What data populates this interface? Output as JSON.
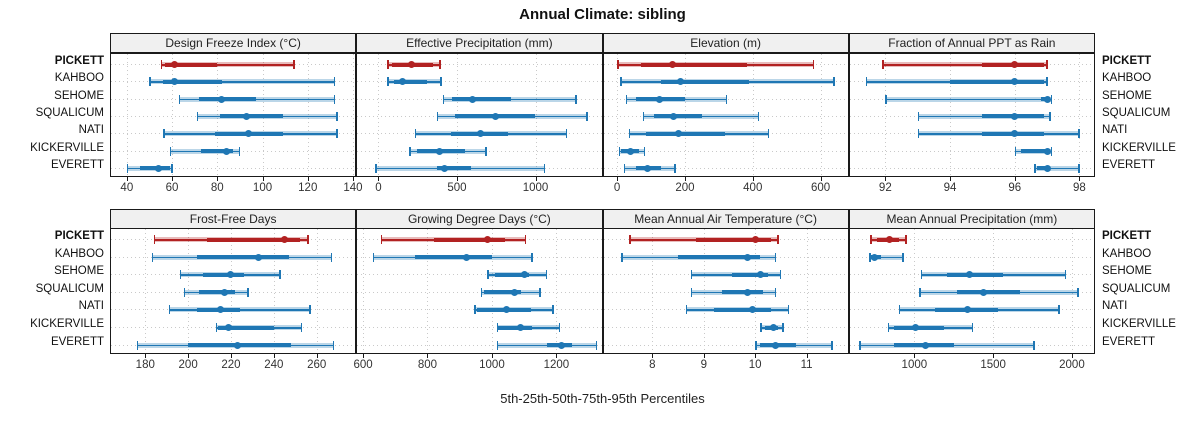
{
  "title": "Annual Climate: sibling",
  "caption": "5th-25th-50th-75th-95th Percentiles",
  "percentile_labels": [
    "5th",
    "25th",
    "50th",
    "75th",
    "95th"
  ],
  "stations": [
    "PICKETT",
    "KAHBOO",
    "SEHOME",
    "SQUALICUM",
    "NATI",
    "KICKERVILLE",
    "EVERETT"
  ],
  "highlight_station": "PICKETT",
  "colors": {
    "highlight": "#B22222",
    "highlight_band": "rgba(178,34,34,0.30)",
    "normal": "#1F77B4",
    "normal_band": "rgba(31,119,180,0.30)",
    "panel_border": "#1a1a1a",
    "header_bg": "#f0f0f0",
    "gridline": "#c9c9c9"
  },
  "chart_data": [
    {
      "type": "interval",
      "title": "Design Freeze Index (°C)",
      "ticks": [
        40,
        60,
        80,
        100,
        120,
        140
      ],
      "domain": [
        33,
        141
      ],
      "series": [
        {
          "name": "PICKETT",
          "percentiles": [
            55,
            57,
            61,
            80,
            114
          ]
        },
        {
          "name": "KAHBOO",
          "percentiles": [
            50,
            56,
            61,
            82,
            132
          ]
        },
        {
          "name": "SEHOME",
          "percentiles": [
            63,
            72,
            82,
            97,
            132
          ]
        },
        {
          "name": "SQUALICUM",
          "percentiles": [
            71,
            81,
            93,
            109,
            133
          ]
        },
        {
          "name": "NATI",
          "percentiles": [
            56,
            79,
            94,
            109,
            133
          ]
        },
        {
          "name": "KICKERVILLE",
          "percentiles": [
            59,
            73,
            84,
            87,
            90
          ]
        },
        {
          "name": "EVERETT",
          "percentiles": [
            40,
            46,
            54,
            59,
            60
          ]
        }
      ]
    },
    {
      "type": "interval",
      "title": "Effective Precipitation (mm)",
      "ticks": [
        0,
        500,
        1000
      ],
      "domain": [
        -135,
        1420
      ],
      "series": [
        {
          "name": "PICKETT",
          "percentiles": [
            55,
            85,
            210,
            350,
            395
          ]
        },
        {
          "name": "KAHBOO",
          "percentiles": [
            55,
            100,
            150,
            310,
            400
          ]
        },
        {
          "name": "SEHOME",
          "percentiles": [
            410,
            470,
            600,
            845,
            1260
          ]
        },
        {
          "name": "SQUALICUM",
          "percentiles": [
            370,
            490,
            745,
            995,
            1330
          ]
        },
        {
          "name": "NATI",
          "percentiles": [
            230,
            460,
            650,
            825,
            1200
          ]
        },
        {
          "name": "KICKERVILLE",
          "percentiles": [
            195,
            245,
            390,
            550,
            685
          ]
        },
        {
          "name": "EVERETT",
          "percentiles": [
            -20,
            375,
            420,
            590,
            1060
          ]
        }
      ]
    },
    {
      "type": "interval",
      "title": "Elevation (m)",
      "ticks": [
        0,
        200,
        400,
        600
      ],
      "domain": [
        -40,
        680
      ],
      "series": [
        {
          "name": "PICKETT",
          "percentiles": [
            0,
            70,
            162,
            383,
            580
          ]
        },
        {
          "name": "KAHBOO",
          "percentiles": [
            10,
            130,
            188,
            390,
            640
          ]
        },
        {
          "name": "SEHOME",
          "percentiles": [
            25,
            55,
            125,
            200,
            323
          ]
        },
        {
          "name": "SQUALICUM",
          "percentiles": [
            76,
            110,
            165,
            250,
            417
          ]
        },
        {
          "name": "NATI",
          "percentiles": [
            35,
            85,
            182,
            318,
            447
          ]
        },
        {
          "name": "KICKERVILLE",
          "percentiles": [
            5,
            12,
            41,
            66,
            81
          ]
        },
        {
          "name": "EVERETT",
          "percentiles": [
            20,
            56,
            89,
            130,
            172
          ]
        }
      ]
    },
    {
      "type": "interval",
      "title": "Fraction of Annual PPT as Rain",
      "ticks": [
        92,
        94,
        96,
        98
      ],
      "domain": [
        90.9,
        98.45
      ],
      "series": [
        {
          "name": "PICKETT",
          "percentiles": [
            91.9,
            95.0,
            96.0,
            96.9,
            97.0
          ]
        },
        {
          "name": "KAHBOO",
          "percentiles": [
            91.4,
            94.0,
            96.0,
            96.9,
            97.0
          ]
        },
        {
          "name": "SEHOME",
          "percentiles": [
            92.0,
            96.8,
            97.0,
            97.1,
            97.15
          ]
        },
        {
          "name": "SQUALICUM",
          "percentiles": [
            93.0,
            95.0,
            96.0,
            96.9,
            97.1
          ]
        },
        {
          "name": "NATI",
          "percentiles": [
            93.0,
            95.0,
            96.0,
            96.9,
            98.0
          ]
        },
        {
          "name": "KICKERVILLE",
          "percentiles": [
            96.0,
            96.2,
            97.0,
            97.1,
            97.15
          ]
        },
        {
          "name": "EVERETT",
          "percentiles": [
            96.6,
            96.7,
            97.0,
            97.1,
            98.0
          ]
        }
      ]
    },
    {
      "type": "interval",
      "title": "Frost-Free Days",
      "ticks": [
        180,
        200,
        220,
        240,
        260
      ],
      "domain": [
        164,
        278
      ],
      "series": [
        {
          "name": "PICKETT",
          "percentiles": [
            184,
            209,
            245,
            252,
            256
          ]
        },
        {
          "name": "KAHBOO",
          "percentiles": [
            183,
            204,
            233,
            247,
            267
          ]
        },
        {
          "name": "SEHOME",
          "percentiles": [
            196,
            207,
            220,
            226,
            243
          ]
        },
        {
          "name": "SQUALICUM",
          "percentiles": [
            198,
            205,
            217,
            222,
            228
          ]
        },
        {
          "name": "NATI",
          "percentiles": [
            191,
            204,
            215,
            224,
            257
          ]
        },
        {
          "name": "KICKERVILLE",
          "percentiles": [
            213,
            214,
            219,
            240,
            253
          ]
        },
        {
          "name": "EVERETT",
          "percentiles": [
            176,
            200,
            223,
            248,
            268
          ]
        }
      ]
    },
    {
      "type": "interval",
      "title": "Growing Degree Days (°C)",
      "ticks": [
        600,
        800,
        1000,
        1200
      ],
      "domain": [
        582,
        1340
      ],
      "series": [
        {
          "name": "PICKETT",
          "percentiles": [
            655,
            820,
            985,
            1040,
            1105
          ]
        },
        {
          "name": "KAHBOO",
          "percentiles": [
            630,
            760,
            920,
            1000,
            1125
          ]
        },
        {
          "name": "SEHOME",
          "percentiles": [
            985,
            1010,
            1100,
            1115,
            1170
          ]
        },
        {
          "name": "SQUALICUM",
          "percentiles": [
            965,
            975,
            1070,
            1090,
            1150
          ]
        },
        {
          "name": "NATI",
          "percentiles": [
            945,
            955,
            1045,
            1120,
            1190
          ]
        },
        {
          "name": "KICKERVILLE",
          "percentiles": [
            1015,
            1020,
            1090,
            1125,
            1210
          ]
        },
        {
          "name": "EVERETT",
          "percentiles": [
            1015,
            1170,
            1215,
            1250,
            1325
          ]
        }
      ]
    },
    {
      "type": "interval",
      "title": "Mean Annual Air Temperature (°C)",
      "ticks": [
        8,
        9,
        10,
        11
      ],
      "domain": [
        7.05,
        11.8
      ],
      "series": [
        {
          "name": "PICKETT",
          "percentiles": [
            7.55,
            8.85,
            10.0,
            10.3,
            10.45
          ]
        },
        {
          "name": "KAHBOO",
          "percentiles": [
            7.4,
            8.5,
            9.85,
            10.1,
            10.4
          ]
        },
        {
          "name": "SEHOME",
          "percentiles": [
            8.75,
            9.55,
            10.1,
            10.25,
            10.5
          ]
        },
        {
          "name": "SQUALICUM",
          "percentiles": [
            8.75,
            9.35,
            9.85,
            10.15,
            10.4
          ]
        },
        {
          "name": "NATI",
          "percentiles": [
            8.65,
            9.2,
            9.95,
            10.3,
            10.65
          ]
        },
        {
          "name": "KICKERVILLE",
          "percentiles": [
            10.1,
            10.2,
            10.35,
            10.45,
            10.55
          ]
        },
        {
          "name": "EVERETT",
          "percentiles": [
            10.0,
            10.1,
            10.4,
            10.8,
            11.5
          ]
        }
      ]
    },
    {
      "type": "interval",
      "title": "Mean Annual Precipitation (mm)",
      "ticks": [
        1000,
        1500,
        2000
      ],
      "domain": [
        590,
        2140
      ],
      "series": [
        {
          "name": "PICKETT",
          "percentiles": [
            720,
            760,
            840,
            900,
            950
          ]
        },
        {
          "name": "KAHBOO",
          "percentiles": [
            715,
            725,
            745,
            790,
            930
          ]
        },
        {
          "name": "SEHOME",
          "percentiles": [
            1040,
            1210,
            1350,
            1560,
            1960
          ]
        },
        {
          "name": "SQUALICUM",
          "percentiles": [
            1030,
            1270,
            1440,
            1670,
            2040
          ]
        },
        {
          "name": "NATI",
          "percentiles": [
            900,
            1130,
            1340,
            1530,
            1920
          ]
        },
        {
          "name": "KICKERVILLE",
          "percentiles": [
            830,
            870,
            1010,
            1190,
            1370
          ]
        },
        {
          "name": "EVERETT",
          "percentiles": [
            650,
            870,
            1070,
            1250,
            1760
          ]
        }
      ]
    }
  ]
}
